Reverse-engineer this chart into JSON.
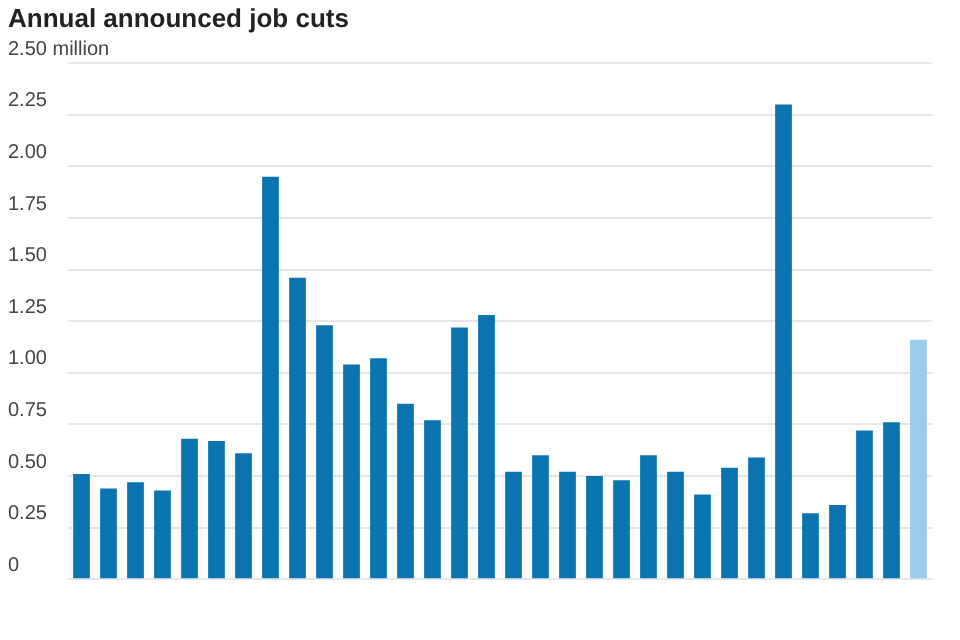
{
  "chart_data": {
    "type": "bar",
    "title": "Annual announced job cuts",
    "categories": [
      null,
      null,
      null,
      null,
      null,
      null,
      null,
      null,
      null,
      null,
      null,
      null,
      null,
      null,
      null,
      null,
      null,
      null,
      null,
      null,
      null,
      null,
      null,
      null,
      null,
      null,
      null,
      null,
      null,
      null,
      null,
      null
    ],
    "values": [
      0.51,
      0.44,
      0.47,
      0.43,
      0.68,
      0.67,
      0.61,
      1.95,
      1.46,
      1.23,
      1.04,
      1.07,
      0.85,
      0.77,
      1.22,
      1.28,
      0.52,
      0.6,
      0.52,
      0.5,
      0.48,
      0.6,
      0.52,
      0.41,
      0.54,
      0.59,
      2.3,
      0.32,
      0.36,
      0.72,
      0.76,
      1.16
    ],
    "colors": [
      "#0b74b0",
      "#0b74b0",
      "#0b74b0",
      "#0b74b0",
      "#0b74b0",
      "#0b74b0",
      "#0b74b0",
      "#0b74b0",
      "#0b74b0",
      "#0b74b0",
      "#0b74b0",
      "#0b74b0",
      "#0b74b0",
      "#0b74b0",
      "#0b74b0",
      "#0b74b0",
      "#0b74b0",
      "#0b74b0",
      "#0b74b0",
      "#0b74b0",
      "#0b74b0",
      "#0b74b0",
      "#0b74b0",
      "#0b74b0",
      "#0b74b0",
      "#0b74b0",
      "#0b74b0",
      "#0b74b0",
      "#0b74b0",
      "#0b74b0",
      "#0b74b0",
      "#9bcbec"
    ],
    "ylim": [
      0,
      2.5
    ],
    "yticks": [
      0,
      0.25,
      {
        "value": 0.5,
        "label": "0.50"
      },
      0.75,
      {
        "value": 1,
        "label": "1.00"
      },
      1.25,
      {
        "value": 1.5,
        "label": "1.50"
      },
      1.75,
      {
        "value": 2,
        "label": "2.00"
      },
      2.25,
      {
        "value": 2.5,
        "label": "2.50 million"
      }
    ],
    "grid": "y",
    "legend": false
  }
}
